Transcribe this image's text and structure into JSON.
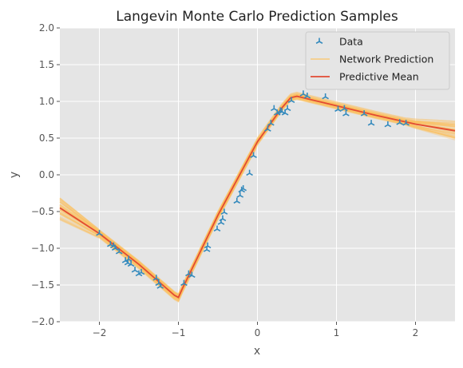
{
  "chart_data": {
    "type": "line",
    "title": "Langevin Monte Carlo Prediction Samples",
    "xlabel": "x",
    "ylabel": "y",
    "xlim": [
      -2.5,
      2.5
    ],
    "ylim": [
      -2.0,
      2.0
    ],
    "xticks": [
      "−2",
      "−1",
      "0",
      "1",
      "2"
    ],
    "xtick_values": [
      -2,
      -1,
      0,
      1,
      2
    ],
    "yticks": [
      "−2.0",
      "−1.5",
      "−1.0",
      "−0.5",
      "0.0",
      "0.5",
      "1.0",
      "1.5",
      "2.0"
    ],
    "ytick_values": [
      -2.0,
      -1.5,
      -1.0,
      -0.5,
      0.0,
      0.5,
      1.0,
      1.5,
      2.0
    ],
    "grid": true,
    "legend_position": "top-right",
    "colors": {
      "background": "#e5e5e5",
      "grid": "#ffffff",
      "data": "#348abd",
      "samples": "#fbc15e",
      "mean": "#e24a33"
    },
    "legend": [
      {
        "label": "Data",
        "kind": "marker"
      },
      {
        "label": "Network Prediction",
        "kind": "samples"
      },
      {
        "label": "Predictive Mean",
        "kind": "mean"
      }
    ],
    "series": [
      {
        "name": "Data",
        "kind": "scatter",
        "x": [
          -2.0,
          -1.86,
          -1.82,
          -1.8,
          -1.75,
          -1.67,
          -1.64,
          -1.63,
          -1.6,
          -1.55,
          -1.5,
          -1.47,
          -1.28,
          -1.25,
          -1.23,
          -0.93,
          -0.87,
          -0.83,
          -0.64,
          -0.63,
          -0.51,
          -0.46,
          -0.44,
          -0.42,
          -0.26,
          -0.22,
          -0.2,
          -0.18,
          -0.1,
          -0.05,
          0.13,
          0.17,
          0.21,
          0.25,
          0.29,
          0.31,
          0.35,
          0.38,
          0.43,
          0.58,
          0.63,
          0.86,
          1.02,
          1.1,
          1.12,
          1.35,
          1.44,
          1.65,
          1.8,
          1.88
        ],
        "y": [
          -0.8,
          -0.95,
          -0.97,
          -1.0,
          -1.05,
          -1.17,
          -1.2,
          -1.15,
          -1.22,
          -1.3,
          -1.35,
          -1.33,
          -1.41,
          -1.48,
          -1.52,
          -1.48,
          -1.35,
          -1.37,
          -1.02,
          -0.97,
          -0.74,
          -0.65,
          -0.6,
          -0.51,
          -0.36,
          -0.28,
          -0.21,
          -0.19,
          0.02,
          0.26,
          0.62,
          0.7,
          0.9,
          0.84,
          0.87,
          0.86,
          0.84,
          0.9,
          1.01,
          1.1,
          1.07,
          1.06,
          0.89,
          0.9,
          0.83,
          0.83,
          0.7,
          0.68,
          0.71,
          0.7
        ]
      },
      {
        "name": "Predictive Mean",
        "kind": "line",
        "x": [
          -2.5,
          -2.0,
          -1.5,
          -1.2,
          -1.05,
          -1.0,
          -0.95,
          -0.85,
          -0.5,
          0.0,
          0.3,
          0.42,
          0.5,
          1.0,
          1.5,
          2.0,
          2.5
        ],
        "y": [
          -0.45,
          -0.8,
          -1.22,
          -1.5,
          -1.64,
          -1.67,
          -1.55,
          -1.33,
          -0.55,
          0.45,
          0.9,
          1.05,
          1.07,
          0.94,
          0.81,
          0.69,
          0.6
        ]
      }
    ]
  }
}
